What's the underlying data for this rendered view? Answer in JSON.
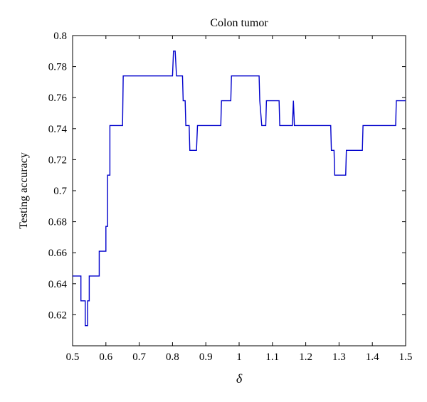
{
  "chart_data": {
    "type": "line",
    "title": "Colon tumor",
    "xlabel": "δ",
    "ylabel": "Testing accuracy",
    "xlim": [
      0.5,
      1.5
    ],
    "ylim": [
      0.6,
      0.8
    ],
    "xticks": [
      "0.5",
      "0.6",
      "0.7",
      "0.8",
      "0.9",
      "1",
      "1.1",
      "1.2",
      "1.3",
      "1.4",
      "1.5"
    ],
    "yticks": [
      "0.62",
      "0.64",
      "0.66",
      "0.68",
      "0.7",
      "0.72",
      "0.74",
      "0.76",
      "0.78",
      "0.8"
    ],
    "grid": false,
    "line_color": "#0000cc",
    "series": [
      {
        "points": [
          [
            0.5,
            0.645
          ],
          [
            0.525,
            0.645
          ],
          [
            0.525,
            0.629
          ],
          [
            0.538,
            0.629
          ],
          [
            0.538,
            0.613
          ],
          [
            0.545,
            0.613
          ],
          [
            0.545,
            0.629
          ],
          [
            0.55,
            0.629
          ],
          [
            0.55,
            0.645
          ],
          [
            0.58,
            0.645
          ],
          [
            0.58,
            0.661
          ],
          [
            0.595,
            0.661
          ],
          [
            0.6,
            0.661
          ],
          [
            0.6,
            0.677
          ],
          [
            0.605,
            0.677
          ],
          [
            0.605,
            0.71
          ],
          [
            0.612,
            0.71
          ],
          [
            0.612,
            0.742
          ],
          [
            0.65,
            0.742
          ],
          [
            0.652,
            0.774
          ],
          [
            0.8,
            0.774
          ],
          [
            0.803,
            0.79
          ],
          [
            0.808,
            0.79
          ],
          [
            0.812,
            0.774
          ],
          [
            0.83,
            0.774
          ],
          [
            0.832,
            0.758
          ],
          [
            0.838,
            0.758
          ],
          [
            0.84,
            0.742
          ],
          [
            0.85,
            0.742
          ],
          [
            0.852,
            0.726
          ],
          [
            0.872,
            0.726
          ],
          [
            0.875,
            0.742
          ],
          [
            0.945,
            0.742
          ],
          [
            0.947,
            0.758
          ],
          [
            0.975,
            0.758
          ],
          [
            0.977,
            0.774
          ],
          [
            1.06,
            0.774
          ],
          [
            1.062,
            0.758
          ],
          [
            1.068,
            0.742
          ],
          [
            1.08,
            0.742
          ],
          [
            1.082,
            0.758
          ],
          [
            1.12,
            0.758
          ],
          [
            1.122,
            0.742
          ],
          [
            1.16,
            0.742
          ],
          [
            1.163,
            0.758
          ],
          [
            1.166,
            0.742
          ],
          [
            1.275,
            0.742
          ],
          [
            1.277,
            0.726
          ],
          [
            1.285,
            0.726
          ],
          [
            1.287,
            0.71
          ],
          [
            1.32,
            0.71
          ],
          [
            1.322,
            0.726
          ],
          [
            1.37,
            0.726
          ],
          [
            1.372,
            0.742
          ],
          [
            1.47,
            0.742
          ],
          [
            1.472,
            0.758
          ],
          [
            1.5,
            0.758
          ]
        ]
      }
    ]
  }
}
